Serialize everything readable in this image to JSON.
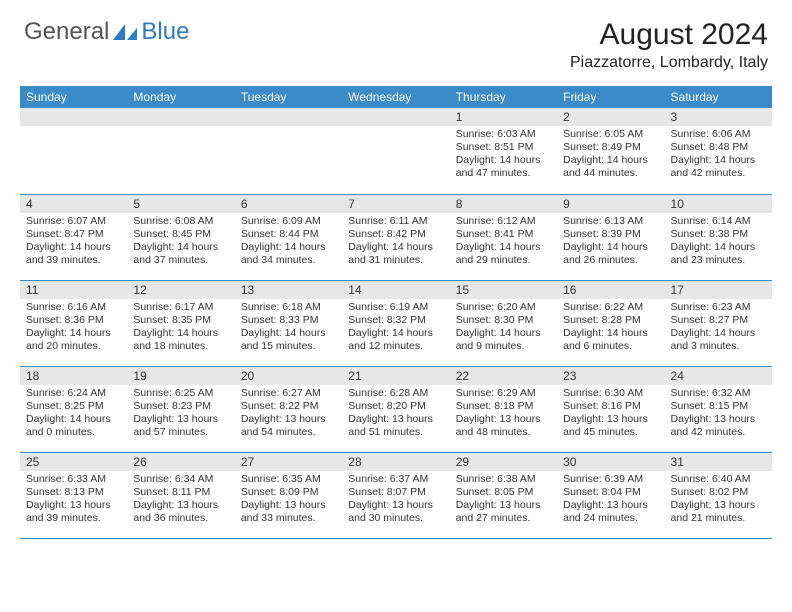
{
  "logo": {
    "general": "General",
    "blue": "Blue"
  },
  "title": "August 2024",
  "location": "Piazzatorre, Lombardy, Italy",
  "colors": {
    "header_bg": "#3b8bc9",
    "header_text": "#ffffff",
    "daynum_bg": "#e7e7e7",
    "border": "#3b8bc9",
    "logo_gray": "#555555",
    "logo_blue": "#2f7bbf"
  },
  "weekdays": [
    "Sunday",
    "Monday",
    "Tuesday",
    "Wednesday",
    "Thursday",
    "Friday",
    "Saturday"
  ],
  "weeks": [
    [
      {
        "n": "",
        "sr": "",
        "ss": "",
        "dl": ""
      },
      {
        "n": "",
        "sr": "",
        "ss": "",
        "dl": ""
      },
      {
        "n": "",
        "sr": "",
        "ss": "",
        "dl": ""
      },
      {
        "n": "",
        "sr": "",
        "ss": "",
        "dl": ""
      },
      {
        "n": "1",
        "sr": "Sunrise: 6:03 AM",
        "ss": "Sunset: 8:51 PM",
        "dl": "Daylight: 14 hours and 47 minutes."
      },
      {
        "n": "2",
        "sr": "Sunrise: 6:05 AM",
        "ss": "Sunset: 8:49 PM",
        "dl": "Daylight: 14 hours and 44 minutes."
      },
      {
        "n": "3",
        "sr": "Sunrise: 6:06 AM",
        "ss": "Sunset: 8:48 PM",
        "dl": "Daylight: 14 hours and 42 minutes."
      }
    ],
    [
      {
        "n": "4",
        "sr": "Sunrise: 6:07 AM",
        "ss": "Sunset: 8:47 PM",
        "dl": "Daylight: 14 hours and 39 minutes."
      },
      {
        "n": "5",
        "sr": "Sunrise: 6:08 AM",
        "ss": "Sunset: 8:45 PM",
        "dl": "Daylight: 14 hours and 37 minutes."
      },
      {
        "n": "6",
        "sr": "Sunrise: 6:09 AM",
        "ss": "Sunset: 8:44 PM",
        "dl": "Daylight: 14 hours and 34 minutes."
      },
      {
        "n": "7",
        "sr": "Sunrise: 6:11 AM",
        "ss": "Sunset: 8:42 PM",
        "dl": "Daylight: 14 hours and 31 minutes."
      },
      {
        "n": "8",
        "sr": "Sunrise: 6:12 AM",
        "ss": "Sunset: 8:41 PM",
        "dl": "Daylight: 14 hours and 29 minutes."
      },
      {
        "n": "9",
        "sr": "Sunrise: 6:13 AM",
        "ss": "Sunset: 8:39 PM",
        "dl": "Daylight: 14 hours and 26 minutes."
      },
      {
        "n": "10",
        "sr": "Sunrise: 6:14 AM",
        "ss": "Sunset: 8:38 PM",
        "dl": "Daylight: 14 hours and 23 minutes."
      }
    ],
    [
      {
        "n": "11",
        "sr": "Sunrise: 6:16 AM",
        "ss": "Sunset: 8:36 PM",
        "dl": "Daylight: 14 hours and 20 minutes."
      },
      {
        "n": "12",
        "sr": "Sunrise: 6:17 AM",
        "ss": "Sunset: 8:35 PM",
        "dl": "Daylight: 14 hours and 18 minutes."
      },
      {
        "n": "13",
        "sr": "Sunrise: 6:18 AM",
        "ss": "Sunset: 8:33 PM",
        "dl": "Daylight: 14 hours and 15 minutes."
      },
      {
        "n": "14",
        "sr": "Sunrise: 6:19 AM",
        "ss": "Sunset: 8:32 PM",
        "dl": "Daylight: 14 hours and 12 minutes."
      },
      {
        "n": "15",
        "sr": "Sunrise: 6:20 AM",
        "ss": "Sunset: 8:30 PM",
        "dl": "Daylight: 14 hours and 9 minutes."
      },
      {
        "n": "16",
        "sr": "Sunrise: 6:22 AM",
        "ss": "Sunset: 8:28 PM",
        "dl": "Daylight: 14 hours and 6 minutes."
      },
      {
        "n": "17",
        "sr": "Sunrise: 6:23 AM",
        "ss": "Sunset: 8:27 PM",
        "dl": "Daylight: 14 hours and 3 minutes."
      }
    ],
    [
      {
        "n": "18",
        "sr": "Sunrise: 6:24 AM",
        "ss": "Sunset: 8:25 PM",
        "dl": "Daylight: 14 hours and 0 minutes."
      },
      {
        "n": "19",
        "sr": "Sunrise: 6:25 AM",
        "ss": "Sunset: 8:23 PM",
        "dl": "Daylight: 13 hours and 57 minutes."
      },
      {
        "n": "20",
        "sr": "Sunrise: 6:27 AM",
        "ss": "Sunset: 8:22 PM",
        "dl": "Daylight: 13 hours and 54 minutes."
      },
      {
        "n": "21",
        "sr": "Sunrise: 6:28 AM",
        "ss": "Sunset: 8:20 PM",
        "dl": "Daylight: 13 hours and 51 minutes."
      },
      {
        "n": "22",
        "sr": "Sunrise: 6:29 AM",
        "ss": "Sunset: 8:18 PM",
        "dl": "Daylight: 13 hours and 48 minutes."
      },
      {
        "n": "23",
        "sr": "Sunrise: 6:30 AM",
        "ss": "Sunset: 8:16 PM",
        "dl": "Daylight: 13 hours and 45 minutes."
      },
      {
        "n": "24",
        "sr": "Sunrise: 6:32 AM",
        "ss": "Sunset: 8:15 PM",
        "dl": "Daylight: 13 hours and 42 minutes."
      }
    ],
    [
      {
        "n": "25",
        "sr": "Sunrise: 6:33 AM",
        "ss": "Sunset: 8:13 PM",
        "dl": "Daylight: 13 hours and 39 minutes."
      },
      {
        "n": "26",
        "sr": "Sunrise: 6:34 AM",
        "ss": "Sunset: 8:11 PM",
        "dl": "Daylight: 13 hours and 36 minutes."
      },
      {
        "n": "27",
        "sr": "Sunrise: 6:35 AM",
        "ss": "Sunset: 8:09 PM",
        "dl": "Daylight: 13 hours and 33 minutes."
      },
      {
        "n": "28",
        "sr": "Sunrise: 6:37 AM",
        "ss": "Sunset: 8:07 PM",
        "dl": "Daylight: 13 hours and 30 minutes."
      },
      {
        "n": "29",
        "sr": "Sunrise: 6:38 AM",
        "ss": "Sunset: 8:05 PM",
        "dl": "Daylight: 13 hours and 27 minutes."
      },
      {
        "n": "30",
        "sr": "Sunrise: 6:39 AM",
        "ss": "Sunset: 8:04 PM",
        "dl": "Daylight: 13 hours and 24 minutes."
      },
      {
        "n": "31",
        "sr": "Sunrise: 6:40 AM",
        "ss": "Sunset: 8:02 PM",
        "dl": "Daylight: 13 hours and 21 minutes."
      }
    ]
  ]
}
